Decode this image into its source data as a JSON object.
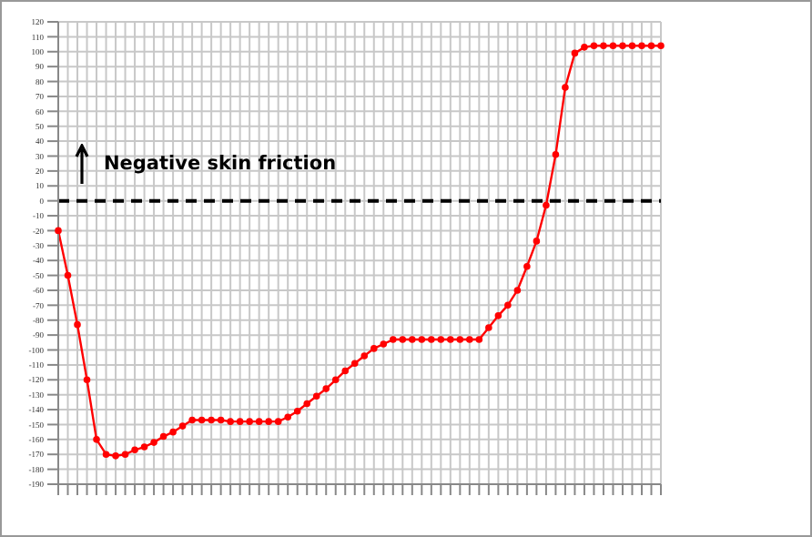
{
  "chart_data": {
    "type": "line",
    "categories": [
      null,
      null,
      null,
      null,
      null,
      null,
      null,
      null,
      null,
      null,
      null,
      null,
      null,
      null,
      null,
      null,
      null,
      null,
      null,
      null,
      null,
      null,
      null,
      null,
      null,
      null,
      null,
      null,
      null,
      null,
      null,
      null,
      null,
      null,
      null,
      null,
      null,
      null,
      null,
      null,
      null,
      null,
      null,
      null,
      null,
      null,
      null,
      null,
      null,
      null,
      null,
      null,
      null,
      null,
      null,
      null,
      null,
      null,
      null,
      null,
      null,
      null,
      null,
      null
    ],
    "series": [
      {
        "color": "#ff0000",
        "values": [
          -20,
          -50,
          -83,
          -120,
          -160,
          -170,
          -171,
          -170,
          -167,
          -165,
          -162,
          -158,
          -155,
          -151,
          -147,
          -147,
          -147,
          -147,
          -148,
          -148,
          -148,
          -148,
          -148,
          -148,
          -145,
          -141,
          -136,
          -131,
          -126,
          -120,
          -114,
          -109,
          -104,
          -99,
          -96,
          -93,
          -93,
          -93,
          -93,
          -93,
          -93,
          -93,
          -93,
          -93,
          -93,
          -85,
          -77,
          -70,
          -60,
          -44,
          -27,
          -3,
          31,
          76,
          99,
          103,
          104,
          104,
          104,
          104,
          104,
          104,
          104,
          104
        ]
      }
    ],
    "ylim": [
      -190,
      120
    ],
    "yticks": [
      -190,
      -180,
      -170,
      -160,
      -150,
      -140,
      -130,
      -120,
      -110,
      -100,
      -90,
      -80,
      -70,
      -60,
      -50,
      -40,
      -30,
      -20,
      -10,
      0,
      10,
      20,
      30,
      40,
      50,
      60,
      70,
      80,
      90,
      100,
      110,
      120
    ],
    "grid": true,
    "marker": "circle",
    "line_style": "solid",
    "ref_lines": [
      {
        "axis": "y",
        "value": 0,
        "color": "#000000",
        "line_style": "dashed"
      }
    ],
    "annotations": [
      "Negative skin friction"
    ]
  }
}
